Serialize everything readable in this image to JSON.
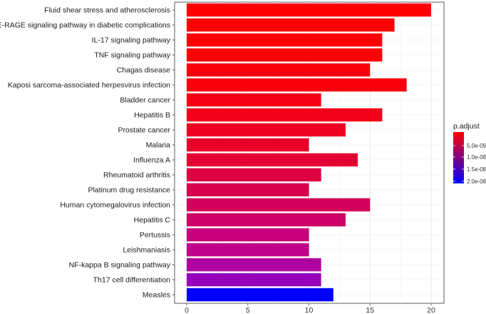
{
  "chart_data": {
    "type": "bar",
    "orientation": "horizontal",
    "title": "",
    "xlabel": "",
    "ylabel": "",
    "xlim": [
      0,
      21
    ],
    "x_ticks": [
      0,
      5,
      10,
      15,
      20
    ],
    "grid": true,
    "categories": [
      "Fluid shear stress and atherosclerosis",
      "AGE-RAGE signaling pathway in diabetic complications",
      "IL-17 signaling pathway",
      "TNF signaling pathway",
      "Chagas disease",
      "Kaposi sarcoma-associated herpesvirus infection",
      "Bladder cancer",
      "Hepatitis B",
      "Prostate cancer",
      "Malaria",
      "Influenza A",
      "Rheumatoid arthritis",
      "Platinum drug resistance",
      "Human cytomegalovirus infection",
      "Hepatitis C",
      "Pertussis",
      "Leishmaniasis",
      "NF-kappa B signaling pathway",
      "Th17 cell differentiation",
      "Measles"
    ],
    "values": [
      20,
      17,
      16,
      16,
      15,
      18,
      11,
      16,
      13,
      10,
      14,
      11,
      10,
      15,
      13,
      10,
      10,
      11,
      11,
      12
    ],
    "bar_colors": [
      "#ff0000",
      "#fe0002",
      "#fd0004",
      "#fc0006",
      "#fa000a",
      "#f8000e",
      "#f30015",
      "#f1001a",
      "#ee0020",
      "#e80028",
      "#e40032",
      "#dc0042",
      "#d7004d",
      "#d20058",
      "#cc0066",
      "#c6007a",
      "#c0008a",
      "#b000a0",
      "#9600b8",
      "#0000ff"
    ],
    "legend": {
      "title": "p.adjust",
      "position": "right",
      "ticks": [
        "5.0e-09",
        "1.0e-08",
        "1.5e-08",
        "2.0e-08"
      ],
      "colors": [
        "#ff0000",
        "#0000ff"
      ]
    }
  }
}
